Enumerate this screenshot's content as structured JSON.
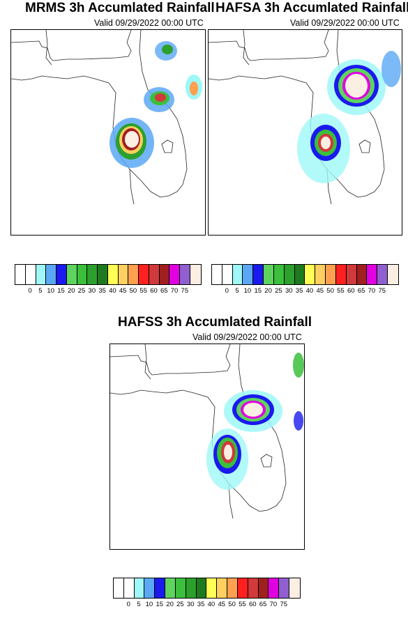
{
  "panels": [
    {
      "id": "mrms",
      "title": "MRMS 3h Accumlated Rainfall",
      "valid": "Valid 09/29/2022 00:00 UTC"
    },
    {
      "id": "hafsa",
      "title": "HAFSA 3h Accumlated Rainfall",
      "valid": "Valid 09/29/2022 00:00 UTC"
    },
    {
      "id": "hafss",
      "title": "HAFSS 3h Accumlated Rainfall",
      "valid": "Valid 09/29/2022 00:00 UTC"
    }
  ],
  "colorbar": {
    "colors": [
      "#ffffff",
      "#ffffff",
      "#9ff7f7",
      "#5aa8f5",
      "#1a1aee",
      "#5ed45e",
      "#3cbf3c",
      "#2ca02c",
      "#1e7a1e",
      "#ffff55",
      "#ffd060",
      "#ff9f50",
      "#ff2020",
      "#d03a3a",
      "#a02020",
      "#e000e0",
      "#9060d0",
      "#fbeee2"
    ],
    "labels": [
      "0",
      "5",
      "10",
      "15",
      "20",
      "25",
      "30",
      "35",
      "40",
      "45",
      "50",
      "55",
      "60",
      "65",
      "70",
      "75"
    ]
  }
}
